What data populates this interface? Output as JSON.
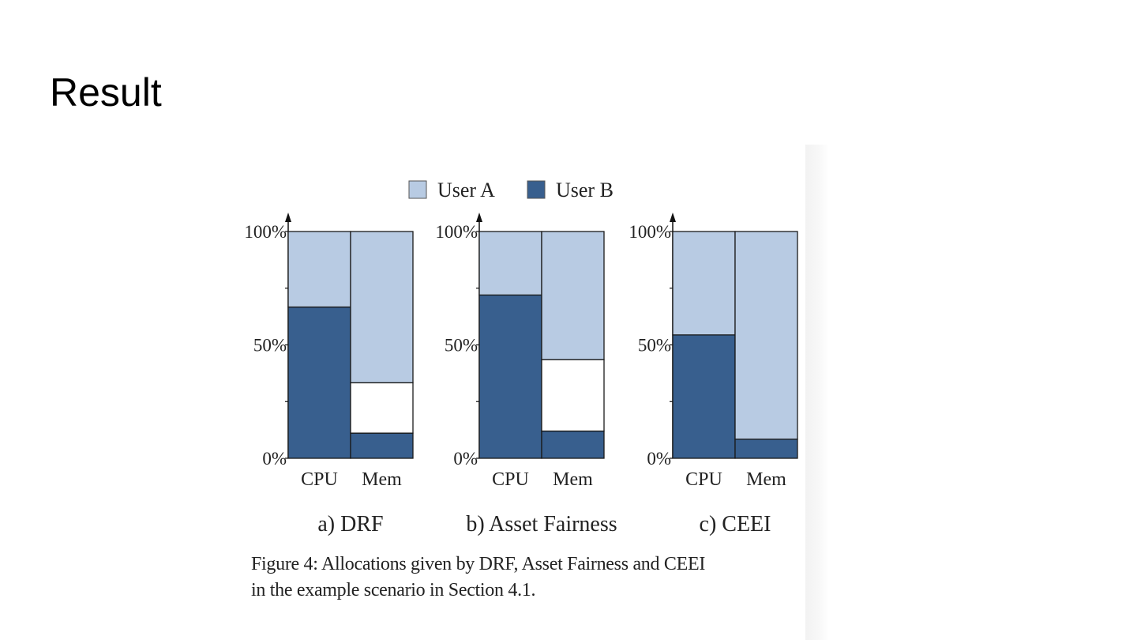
{
  "slide": {
    "title": "Result"
  },
  "caption": {
    "line1": "Figure 4: Allocations given by DRF, Asset Fairness and CEEI",
    "line2": "in the example scenario in Section 4.1."
  },
  "colors": {
    "user_a": "#b8cbe3",
    "user_b": "#385f8e",
    "unallocated": "#ffffff",
    "stroke": "#1a1a1a"
  },
  "chart_data": {
    "type": "bar",
    "stacked": true,
    "legend": {
      "entries": [
        "User A",
        "User B"
      ],
      "placement": "top-center"
    },
    "y_ticks": [
      "0%",
      "50%",
      "100%"
    ],
    "ylim": [
      0,
      100
    ],
    "categories": [
      "CPU",
      "Mem"
    ],
    "panels": [
      {
        "title": "a) DRF",
        "series": [
          {
            "name": "User B",
            "values": [
              66.7,
              11.1
            ]
          },
          {
            "name": "Unallocated",
            "values": [
              0,
              22.2
            ]
          },
          {
            "name": "User A",
            "values": [
              33.3,
              66.7
            ]
          }
        ]
      },
      {
        "title": "b) Asset Fairness",
        "series": [
          {
            "name": "User B",
            "values": [
              72,
              12
            ]
          },
          {
            "name": "Unallocated",
            "values": [
              0,
              31.5
            ]
          },
          {
            "name": "User A",
            "values": [
              28,
              56.5
            ]
          }
        ]
      },
      {
        "title": "c) CEEI",
        "series": [
          {
            "name": "User B",
            "values": [
              54.4,
              8.4
            ]
          },
          {
            "name": "Unallocated",
            "values": [
              0,
              0
            ]
          },
          {
            "name": "User A",
            "values": [
              45.6,
              91.6
            ]
          }
        ]
      }
    ]
  }
}
